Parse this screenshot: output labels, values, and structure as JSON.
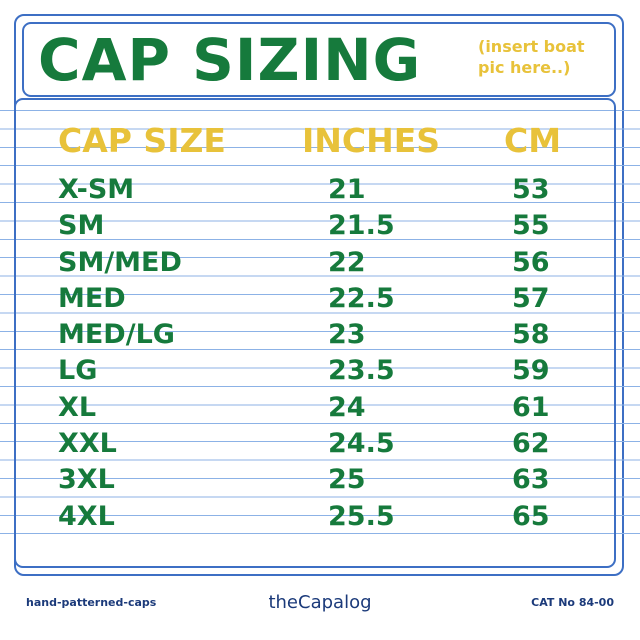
{
  "header": {
    "title": "CAP SIZING",
    "note": "(insert boat pic here..)"
  },
  "table": {
    "columns": [
      "CAP SIZE",
      "INCHES",
      "CM"
    ],
    "rows": [
      [
        "X-SM",
        "21",
        "53"
      ],
      [
        "SM",
        "21.5",
        "55"
      ],
      [
        "SM/MED",
        "22",
        "56"
      ],
      [
        "MED",
        "22.5",
        "57"
      ],
      [
        "MED/LG",
        "23",
        "58"
      ],
      [
        "LG",
        "23.5",
        "59"
      ],
      [
        "XL",
        "24",
        "61"
      ],
      [
        "XXL",
        "24.5",
        "62"
      ],
      [
        "3XL",
        "25",
        "63"
      ],
      [
        "4XL",
        "25.5",
        "65"
      ]
    ]
  },
  "footer": {
    "left": "hand-patterned-caps",
    "center": "theCapalog",
    "right": "CAT No 84-00"
  },
  "colors": {
    "green": "#167a3c",
    "yellow": "#e8c23a",
    "blue": "#3d6fc4"
  }
}
